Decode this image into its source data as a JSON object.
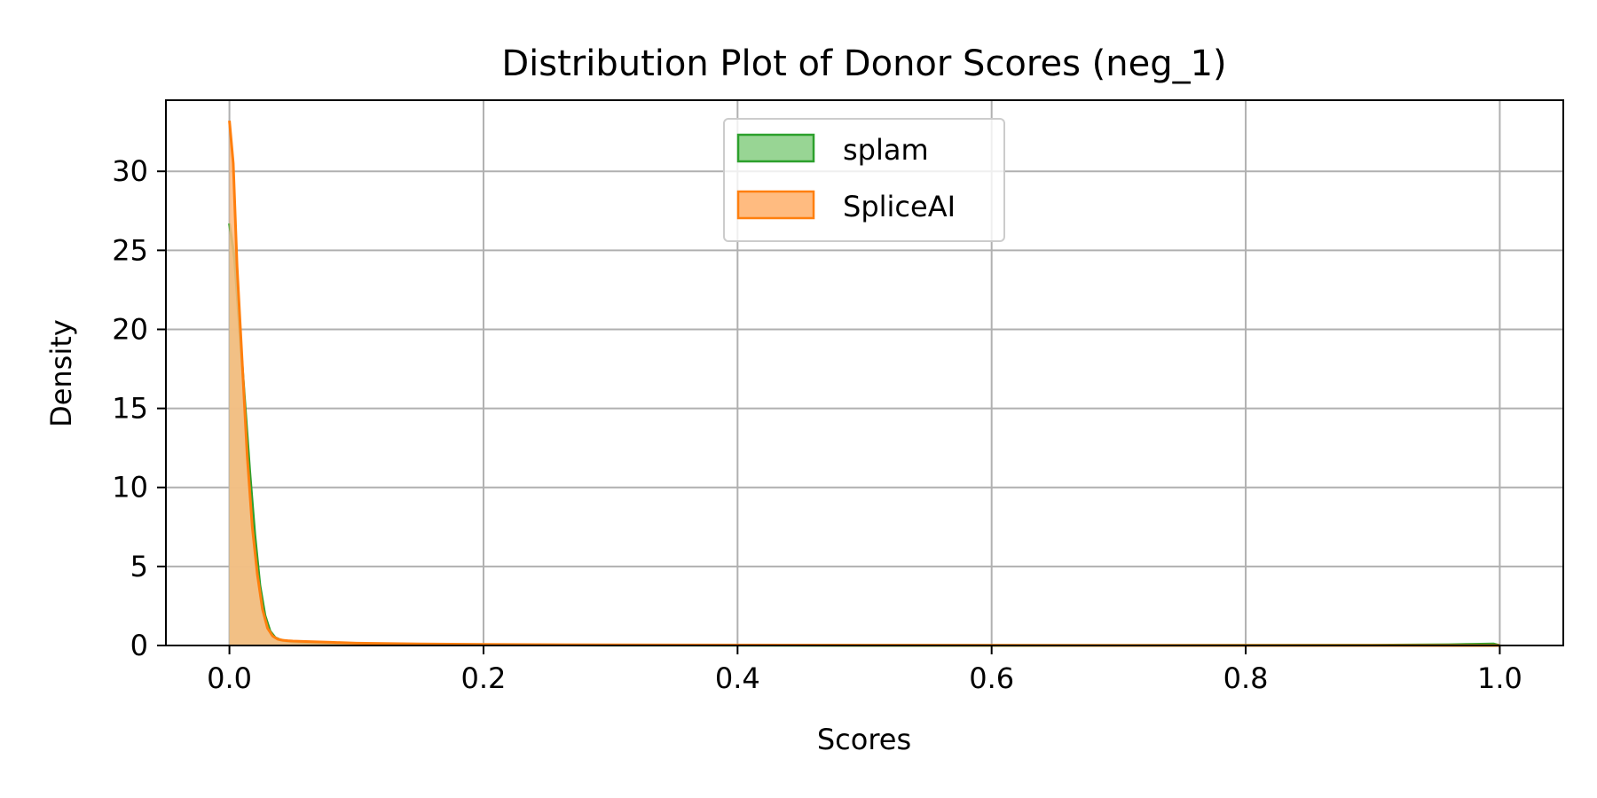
{
  "chart_data": {
    "type": "area",
    "title": "Distribution Plot of Donor Scores (neg_1)",
    "xlabel": "Scores",
    "ylabel": "Density",
    "xlim": [
      -0.05,
      1.05
    ],
    "ylim": [
      0,
      34.5
    ],
    "xticks": [
      0.0,
      0.2,
      0.4,
      0.6,
      0.8,
      1.0
    ],
    "xtick_labels": [
      "0.0",
      "0.2",
      "0.4",
      "0.6",
      "0.8",
      "1.0"
    ],
    "yticks": [
      0,
      5,
      10,
      15,
      20,
      25,
      30
    ],
    "ytick_labels": [
      "0",
      "5",
      "10",
      "15",
      "20",
      "25",
      "30"
    ],
    "grid": true,
    "legend_position": "top-center",
    "series": [
      {
        "name": "splam",
        "color": "#2ca02c",
        "fill": "#98d594",
        "x": [
          0.0,
          0.004,
          0.008,
          0.012,
          0.016,
          0.02,
          0.024,
          0.028,
          0.032,
          0.036,
          0.04,
          0.045,
          0.05,
          0.06,
          0.08,
          0.1,
          0.15,
          0.2,
          0.3,
          0.5,
          0.7,
          0.9,
          0.96,
          0.98,
          0.995,
          1.0
        ],
        "y": [
          26.7,
          24.5,
          20.0,
          15.5,
          11.0,
          7.0,
          3.8,
          1.9,
          0.9,
          0.5,
          0.35,
          0.28,
          0.23,
          0.18,
          0.13,
          0.1,
          0.06,
          0.04,
          0.02,
          0.01,
          0.01,
          0.02,
          0.05,
          0.08,
          0.1,
          0.0
        ]
      },
      {
        "name": "SpliceAI",
        "color": "#ff7f0e",
        "fill": "#ffbb80",
        "x": [
          0.0,
          0.003,
          0.006,
          0.01,
          0.014,
          0.018,
          0.022,
          0.026,
          0.03,
          0.034,
          0.038,
          0.042,
          0.046,
          0.05,
          0.06,
          0.08,
          0.1,
          0.15,
          0.2,
          0.3,
          0.5,
          0.7,
          0.9,
          1.0
        ],
        "y": [
          33.2,
          30.5,
          24.0,
          18.0,
          12.0,
          7.5,
          4.5,
          2.3,
          1.1,
          0.6,
          0.4,
          0.33,
          0.3,
          0.28,
          0.25,
          0.2,
          0.15,
          0.1,
          0.07,
          0.04,
          0.02,
          0.01,
          0.01,
          0.0
        ]
      }
    ]
  }
}
